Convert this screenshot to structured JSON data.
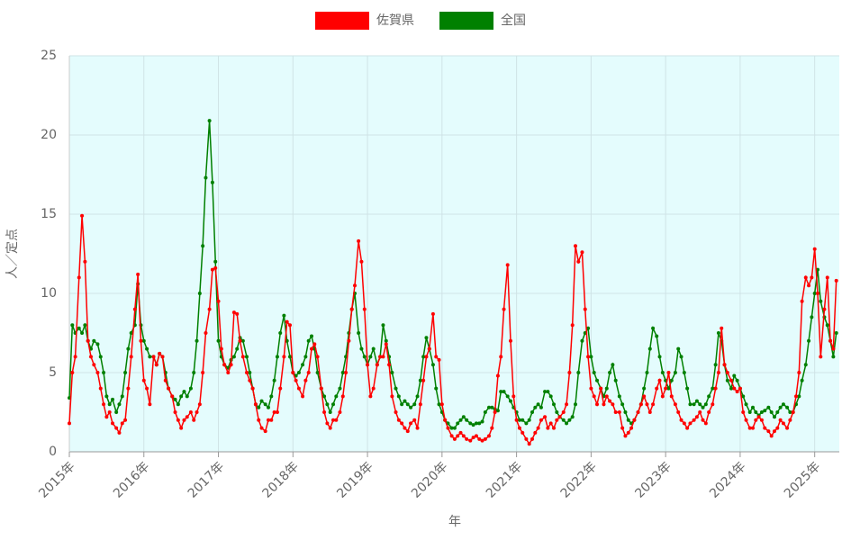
{
  "chart_data": {
    "type": "line",
    "x_label": "年",
    "y_label": "人／定点",
    "xlim": [
      2015,
      2025.33
    ],
    "ylim": [
      0,
      25
    ],
    "xticks": [
      {
        "value": 2015,
        "label": "2015年"
      },
      {
        "value": 2016,
        "label": "2016年"
      },
      {
        "value": 2017,
        "label": "2017年"
      },
      {
        "value": 2018,
        "label": "2018年"
      },
      {
        "value": 2019,
        "label": "2019年"
      },
      {
        "value": 2020,
        "label": "2020年"
      },
      {
        "value": 2021,
        "label": "2021年"
      },
      {
        "value": 2022,
        "label": "2022年"
      },
      {
        "value": 2023,
        "label": "2023年"
      },
      {
        "value": 2024,
        "label": "2024年"
      },
      {
        "value": 2025,
        "label": "2025年"
      }
    ],
    "yticks": [
      0,
      5,
      10,
      15,
      20,
      25
    ],
    "grid": true,
    "legend": "top",
    "x": [
      2015,
      2015.04,
      2015.08,
      2015.13,
      2015.17,
      2015.21,
      2015.25,
      2015.29,
      2015.33,
      2015.38,
      2015.42,
      2015.46,
      2015.5,
      2015.54,
      2015.58,
      2015.63,
      2015.67,
      2015.71,
      2015.75,
      2015.79,
      2015.83,
      2015.88,
      2015.92,
      2015.96,
      2016,
      2016.04,
      2016.08,
      2016.13,
      2016.17,
      2016.21,
      2016.25,
      2016.29,
      2016.33,
      2016.38,
      2016.42,
      2016.46,
      2016.5,
      2016.54,
      2016.58,
      2016.63,
      2016.67,
      2016.71,
      2016.75,
      2016.79,
      2016.83,
      2016.88,
      2016.92,
      2016.96,
      2017,
      2017.04,
      2017.08,
      2017.13,
      2017.17,
      2017.21,
      2017.25,
      2017.29,
      2017.33,
      2017.38,
      2017.42,
      2017.46,
      2017.5,
      2017.54,
      2017.58,
      2017.63,
      2017.67,
      2017.71,
      2017.75,
      2017.79,
      2017.83,
      2017.88,
      2017.92,
      2017.96,
      2018,
      2018.04,
      2018.08,
      2018.13,
      2018.17,
      2018.21,
      2018.25,
      2018.29,
      2018.33,
      2018.38,
      2018.42,
      2018.46,
      2018.5,
      2018.54,
      2018.58,
      2018.63,
      2018.67,
      2018.71,
      2018.75,
      2018.79,
      2018.83,
      2018.88,
      2018.92,
      2018.96,
      2019,
      2019.04,
      2019.08,
      2019.13,
      2019.17,
      2019.21,
      2019.25,
      2019.29,
      2019.33,
      2019.38,
      2019.42,
      2019.46,
      2019.5,
      2019.54,
      2019.58,
      2019.63,
      2019.67,
      2019.71,
      2019.75,
      2019.79,
      2019.83,
      2019.88,
      2019.92,
      2019.96,
      2020,
      2020.04,
      2020.08,
      2020.13,
      2020.17,
      2020.21,
      2020.25,
      2020.29,
      2020.33,
      2020.38,
      2020.42,
      2020.46,
      2020.5,
      2020.54,
      2020.58,
      2020.63,
      2020.67,
      2020.71,
      2020.75,
      2020.79,
      2020.83,
      2020.88,
      2020.92,
      2020.96,
      2021,
      2021.04,
      2021.08,
      2021.13,
      2021.17,
      2021.21,
      2021.25,
      2021.29,
      2021.33,
      2021.38,
      2021.42,
      2021.46,
      2021.5,
      2021.54,
      2021.58,
      2021.63,
      2021.67,
      2021.71,
      2021.75,
      2021.79,
      2021.83,
      2021.88,
      2021.92,
      2021.96,
      2022,
      2022.04,
      2022.08,
      2022.13,
      2022.17,
      2022.21,
      2022.25,
      2022.29,
      2022.33,
      2022.38,
      2022.42,
      2022.46,
      2022.5,
      2022.54,
      2022.58,
      2022.63,
      2022.67,
      2022.71,
      2022.75,
      2022.79,
      2022.83,
      2022.88,
      2022.92,
      2022.96,
      2023,
      2023.04,
      2023.08,
      2023.13,
      2023.17,
      2023.21,
      2023.25,
      2023.29,
      2023.33,
      2023.38,
      2023.42,
      2023.46,
      2023.5,
      2023.54,
      2023.58,
      2023.63,
      2023.67,
      2023.71,
      2023.75,
      2023.79,
      2023.83,
      2023.88,
      2023.92,
      2023.96,
      2024,
      2024.04,
      2024.08,
      2024.13,
      2024.17,
      2024.21,
      2024.25,
      2024.29,
      2024.33,
      2024.38,
      2024.42,
      2024.46,
      2024.5,
      2024.54,
      2024.58,
      2024.63,
      2024.67,
      2024.71,
      2024.75,
      2024.79,
      2024.83,
      2024.88,
      2024.92,
      2024.96,
      2025,
      2025.04,
      2025.08,
      2025.13,
      2025.17,
      2025.21,
      2025.25,
      2025.29
    ],
    "series": [
      {
        "name": "佐賀県",
        "color": "#ff0000",
        "values": [
          1.8,
          5,
          6,
          11,
          14.9,
          12,
          7,
          6,
          5.5,
          5,
          4,
          3,
          2.2,
          2.5,
          1.8,
          1.5,
          1.2,
          1.8,
          2,
          4,
          6,
          9,
          11.2,
          7,
          4.5,
          4,
          3,
          6,
          5.5,
          6.2,
          6,
          4.5,
          4,
          3.5,
          2.5,
          2,
          1.5,
          2,
          2.2,
          2.5,
          2,
          2.5,
          3,
          5,
          7.5,
          9,
          11.5,
          11.6,
          9.5,
          6.5,
          5.5,
          5,
          5.5,
          8.8,
          8.7,
          7,
          6,
          5,
          4.5,
          4,
          3,
          2,
          1.5,
          1.3,
          2,
          2,
          2.5,
          2.5,
          4,
          6,
          8.2,
          8,
          5,
          4.5,
          4,
          3.5,
          4.5,
          5,
          6.5,
          6.8,
          6,
          4,
          2.5,
          1.8,
          1.5,
          2,
          2,
          2.5,
          3.5,
          5,
          7,
          9,
          10.5,
          13.3,
          12,
          9,
          5.5,
          3.5,
          4,
          5.5,
          6,
          6,
          6.8,
          5.5,
          3.5,
          2.5,
          2,
          1.8,
          1.5,
          1.3,
          1.8,
          2,
          1.5,
          3,
          4.5,
          6,
          6.5,
          8.7,
          6,
          5.8,
          3,
          2,
          1.5,
          1,
          0.8,
          1,
          1.2,
          1,
          0.8,
          0.7,
          0.9,
          1,
          0.8,
          0.7,
          0.8,
          1,
          1.5,
          2.5,
          4.8,
          6,
          9,
          11.8,
          7,
          3.5,
          2,
          1.5,
          1.2,
          0.8,
          0.5,
          0.8,
          1.2,
          1.5,
          2,
          2.2,
          1.5,
          1.8,
          1.5,
          2,
          2.2,
          2.5,
          3,
          5,
          8,
          13,
          12,
          12.6,
          9,
          6,
          4,
          3.5,
          3,
          4,
          3,
          3.5,
          3.2,
          3,
          2.5,
          2.5,
          1.5,
          1,
          1.2,
          1.5,
          2,
          2.5,
          3,
          3.5,
          3,
          2.5,
          3,
          4,
          4.5,
          3.5,
          4,
          5,
          3.5,
          3,
          2.5,
          2,
          1.8,
          1.5,
          1.8,
          2,
          2.2,
          2.5,
          2,
          1.8,
          2.5,
          3,
          4,
          5,
          7.8,
          5.5,
          5,
          4.5,
          4,
          3.8,
          4,
          2.5,
          2,
          1.5,
          1.5,
          2,
          2.2,
          2,
          1.5,
          1.3,
          1,
          1.3,
          1.5,
          2,
          1.8,
          1.5,
          2,
          2.5,
          3.5,
          5,
          9.5,
          11,
          10.5,
          11,
          12.8,
          10,
          6,
          9,
          11,
          7,
          6.5,
          10.8
        ]
      },
      {
        "name": "全国",
        "color": "#008000",
        "values": [
          3.4,
          8,
          7.5,
          7.8,
          7.5,
          8,
          7,
          6.5,
          7,
          6.8,
          6,
          5,
          3.5,
          3,
          3.3,
          2.5,
          3,
          3.5,
          5,
          6.5,
          7.5,
          8,
          10.6,
          8,
          7,
          6.5,
          6,
          6,
          5.5,
          6.2,
          6,
          5,
          4,
          3.5,
          3.3,
          3,
          3.5,
          3.8,
          3.5,
          4,
          5,
          7,
          10,
          13,
          17.3,
          20.9,
          17,
          12,
          7,
          6,
          5.5,
          5.3,
          5.8,
          6,
          6.5,
          7.2,
          7,
          6,
          5,
          4,
          3,
          2.8,
          3.2,
          3,
          2.8,
          3.5,
          4.5,
          6,
          7.5,
          8.6,
          7,
          6,
          5,
          4.8,
          5,
          5.5,
          6,
          7,
          7.3,
          6.5,
          5,
          4,
          3.5,
          3,
          2.5,
          3,
          3.5,
          4,
          5,
          6,
          7.5,
          9,
          10,
          7.5,
          6.5,
          6,
          5.5,
          6,
          6.5,
          5.5,
          6,
          8,
          7,
          6,
          5,
          4,
          3.5,
          3,
          3.2,
          3,
          2.8,
          3,
          3.5,
          4.5,
          6,
          7.2,
          6.5,
          5.5,
          4,
          3,
          2.5,
          2,
          1.8,
          1.5,
          1.5,
          1.8,
          2,
          2.2,
          2,
          1.8,
          1.7,
          1.8,
          1.8,
          1.9,
          2.5,
          2.8,
          2.8,
          2.7,
          2.6,
          3.8,
          3.8,
          3.5,
          3.2,
          2.8,
          2.5,
          2,
          2,
          1.8,
          2,
          2.5,
          2.8,
          3,
          2.8,
          3.8,
          3.8,
          3.5,
          3,
          2.5,
          2.2,
          2,
          1.8,
          2,
          2.2,
          3,
          5,
          7,
          7.5,
          7.8,
          6,
          5,
          4.5,
          4,
          3.5,
          4,
          5,
          5.5,
          4.5,
          3.5,
          3,
          2.5,
          2,
          1.8,
          2,
          2.5,
          3,
          4,
          5,
          6.5,
          7.8,
          7.3,
          6,
          5,
          4.5,
          4,
          4.5,
          5,
          6.5,
          6,
          5,
          4,
          3,
          3,
          3.2,
          3,
          2.8,
          3,
          3.5,
          4,
          5.5,
          7.5,
          7,
          5.5,
          4.5,
          4,
          4.8,
          4.5,
          4,
          3.5,
          3,
          2.5,
          2.8,
          2.5,
          2.3,
          2.5,
          2.6,
          2.8,
          2.5,
          2.2,
          2.5,
          2.8,
          3,
          2.8,
          2.5,
          2.5,
          3,
          3.5,
          4.5,
          5.5,
          7,
          8.5,
          10,
          11.5,
          9.5,
          8.5,
          8,
          7,
          6,
          7.5
        ]
      }
    ]
  }
}
